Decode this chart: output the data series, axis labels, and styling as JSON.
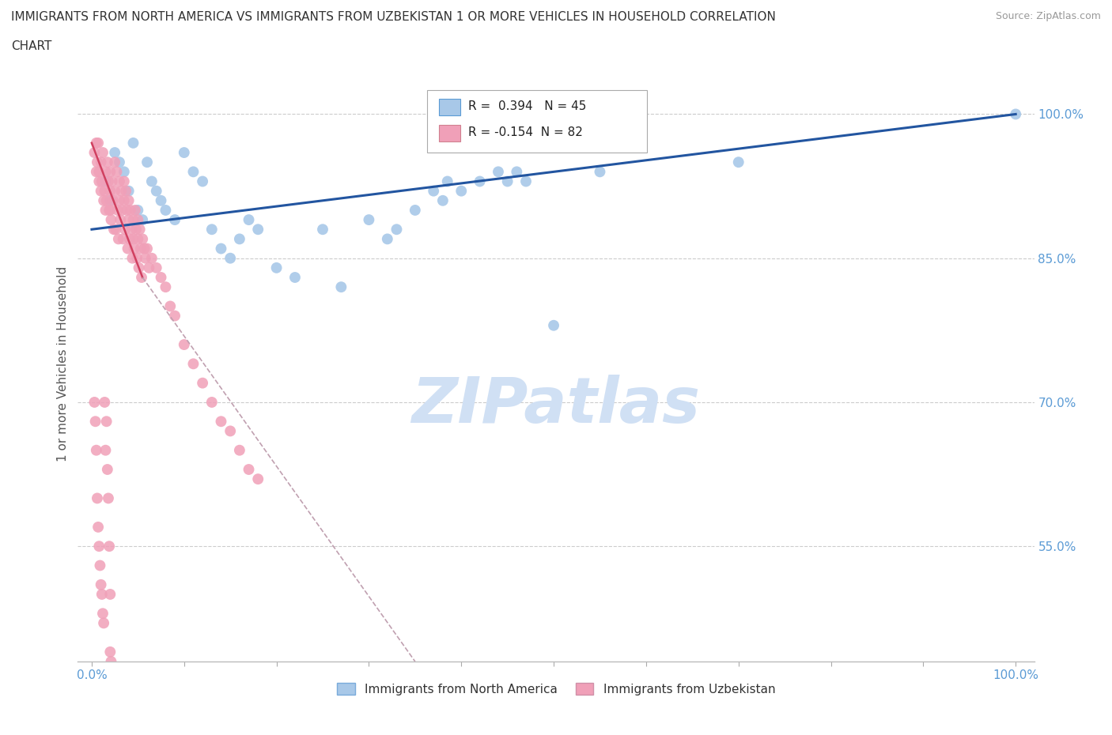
{
  "title_line1": "IMMIGRANTS FROM NORTH AMERICA VS IMMIGRANTS FROM UZBEKISTAN 1 OR MORE VEHICLES IN HOUSEHOLD CORRELATION",
  "title_line2": "CHART",
  "source": "Source: ZipAtlas.com",
  "ylabel": "1 or more Vehicles in Household",
  "R_north_america": 0.394,
  "N_north_america": 45,
  "R_uzbekistan": -0.154,
  "N_uzbekistan": 82,
  "north_america_color": "#a8c8e8",
  "uzbekistan_color": "#f0a0b8",
  "trendline_north_color": "#2255a0",
  "trendline_uzb_solid_color": "#d04060",
  "trendline_uzb_dash_color": "#c0a0b0",
  "watermark_color": "#d0e0f4",
  "y_ticks": [
    55.0,
    70.0,
    85.0,
    100.0
  ],
  "ylim": [
    43.0,
    105.0
  ],
  "xlim": [
    -1.5,
    102.0
  ],
  "na_x": [
    1.5,
    2.0,
    2.5,
    3.0,
    3.5,
    4.0,
    4.5,
    5.0,
    5.5,
    6.0,
    6.5,
    7.0,
    7.5,
    8.0,
    9.0,
    10.0,
    11.0,
    12.0,
    13.0,
    14.0,
    15.0,
    16.0,
    17.0,
    18.0,
    20.0,
    22.0,
    25.0,
    27.0,
    30.0,
    32.0,
    33.0,
    35.0,
    37.0,
    38.0,
    38.5,
    40.0,
    42.0,
    44.0,
    45.0,
    46.0,
    47.0,
    50.0,
    55.0,
    70.0,
    100.0
  ],
  "na_y": [
    93.0,
    91.0,
    96.0,
    95.0,
    94.0,
    92.0,
    97.0,
    90.0,
    89.0,
    95.0,
    93.0,
    92.0,
    91.0,
    90.0,
    89.0,
    96.0,
    94.0,
    93.0,
    88.0,
    86.0,
    85.0,
    87.0,
    89.0,
    88.0,
    84.0,
    83.0,
    88.0,
    82.0,
    89.0,
    87.0,
    88.0,
    90.0,
    92.0,
    91.0,
    93.0,
    92.0,
    93.0,
    94.0,
    93.0,
    94.0,
    93.0,
    78.0,
    94.0,
    95.0,
    100.0
  ],
  "uzb_x": [
    0.3,
    0.5,
    0.7,
    0.8,
    1.0,
    1.0,
    1.2,
    1.3,
    1.5,
    1.5,
    1.7,
    1.8,
    2.0,
    2.0,
    2.0,
    2.2,
    2.3,
    2.5,
    2.5,
    2.7,
    2.8,
    3.0,
    3.0,
    3.2,
    3.3,
    3.5,
    3.5,
    3.7,
    3.8,
    4.0,
    4.0,
    4.2,
    4.3,
    4.5,
    4.5,
    4.7,
    4.8,
    5.0,
    5.0,
    5.2,
    5.3,
    5.5,
    5.7,
    5.8,
    6.0,
    6.2,
    6.5,
    7.0,
    7.5,
    8.0,
    8.5,
    9.0,
    10.0,
    11.0,
    12.0,
    13.0,
    14.0,
    15.0,
    16.0,
    17.0,
    18.0,
    0.5,
    0.6,
    0.8,
    1.1,
    1.4,
    1.6,
    1.9,
    2.1,
    2.4,
    2.6,
    2.9,
    3.1,
    3.4,
    3.6,
    3.9,
    4.1,
    4.4,
    4.6,
    4.9,
    5.1,
    5.4
  ],
  "uzb_y": [
    96.0,
    94.0,
    97.0,
    93.0,
    95.0,
    92.0,
    96.0,
    91.0,
    94.0,
    90.0,
    95.0,
    93.0,
    94.0,
    92.0,
    90.0,
    93.0,
    91.0,
    95.0,
    92.0,
    94.0,
    90.0,
    93.0,
    91.0,
    92.0,
    90.0,
    93.0,
    91.0,
    92.0,
    90.0,
    91.0,
    89.0,
    90.0,
    88.0,
    89.0,
    87.0,
    90.0,
    88.0,
    89.0,
    87.0,
    88.0,
    86.0,
    87.0,
    86.0,
    85.0,
    86.0,
    84.0,
    85.0,
    84.0,
    83.0,
    82.0,
    80.0,
    79.0,
    76.0,
    74.0,
    72.0,
    70.0,
    68.0,
    67.0,
    65.0,
    63.0,
    62.0,
    97.0,
    95.0,
    94.0,
    93.0,
    92.0,
    91.0,
    90.0,
    89.0,
    88.0,
    88.0,
    87.0,
    89.0,
    87.0,
    88.0,
    86.0,
    87.0,
    85.0,
    86.0,
    85.0,
    84.0,
    83.0
  ],
  "uzb_low_x": [
    0.3,
    0.4,
    0.5,
    0.6,
    0.7,
    0.8,
    0.9,
    1.0,
    1.1,
    1.2,
    1.3,
    1.4,
    1.5,
    1.6,
    1.7,
    1.8,
    1.9,
    2.0,
    2.0,
    2.1
  ],
  "uzb_low_y": [
    70.0,
    68.0,
    65.0,
    60.0,
    57.0,
    55.0,
    53.0,
    51.0,
    50.0,
    48.0,
    47.0,
    70.0,
    65.0,
    68.0,
    63.0,
    60.0,
    55.0,
    50.0,
    44.0,
    43.0
  ]
}
